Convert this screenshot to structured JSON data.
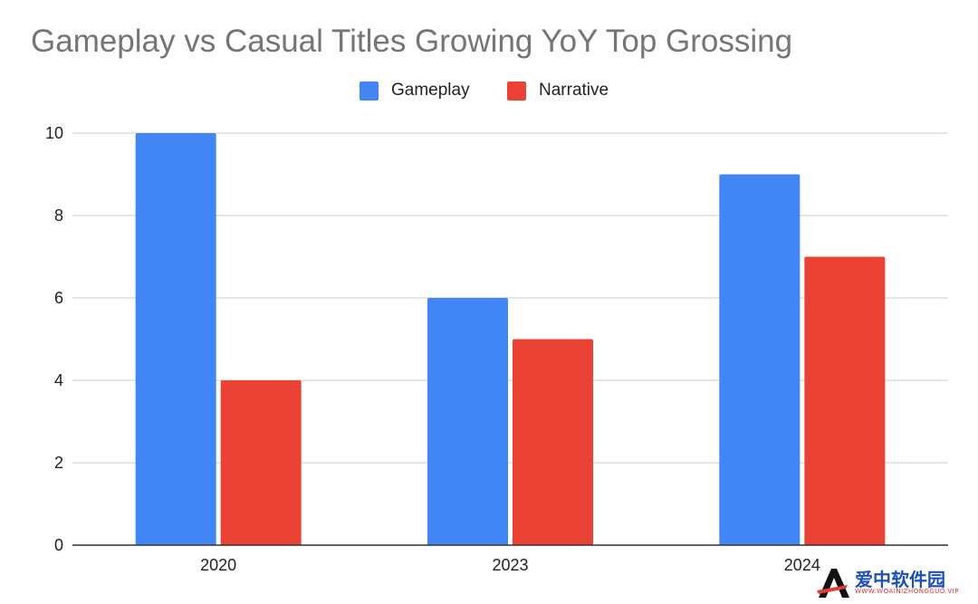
{
  "chart_data": {
    "type": "bar",
    "title": "Gameplay vs Casual Titles Growing YoY Top Grossing",
    "categories": [
      "2020",
      "2023",
      "2024"
    ],
    "series": [
      {
        "name": "Gameplay",
        "values": [
          10,
          6,
          9
        ],
        "color": "#4285f4"
      },
      {
        "name": "Narrative",
        "values": [
          4,
          5,
          7
        ],
        "color": "#ea4335"
      }
    ],
    "ylim": [
      0,
      10
    ],
    "yticks": [
      "0",
      "2",
      "4",
      "6",
      "8",
      "10"
    ],
    "xlabel": "",
    "ylabel": "",
    "grid": true,
    "legend_position": "top-center"
  },
  "watermark": {
    "text": "爱中软件园",
    "subtext": "WWW.WOAINIZHONGGUO.VIP"
  }
}
